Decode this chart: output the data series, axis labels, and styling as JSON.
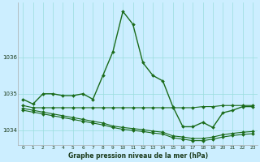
{
  "title": "Graphe pression niveau de la mer (hPa)",
  "bg_color": "#cceeff",
  "grid_color": "#99dddd",
  "line_color": "#1a6b1a",
  "xlim": [
    -0.5,
    23.5
  ],
  "ylim": [
    1033.6,
    1037.5
  ],
  "yticks": [
    1034,
    1035,
    1036
  ],
  "xticks": [
    0,
    1,
    2,
    3,
    4,
    5,
    6,
    7,
    8,
    9,
    10,
    11,
    12,
    13,
    14,
    15,
    16,
    17,
    18,
    19,
    20,
    21,
    22,
    23
  ],
  "series1_x": [
    0,
    1,
    2,
    3,
    4,
    5,
    6,
    7,
    8,
    9,
    10,
    11,
    12,
    13,
    14,
    15,
    16,
    17,
    18,
    19,
    20,
    21,
    22,
    23
  ],
  "series1_y": [
    1034.85,
    1034.72,
    1035.0,
    1035.0,
    1034.95,
    1034.95,
    1035.0,
    1034.85,
    1035.5,
    1036.15,
    1037.25,
    1036.9,
    1035.85,
    1035.5,
    1035.35,
    1034.65,
    1034.1,
    1034.1,
    1034.22,
    1034.08,
    1034.48,
    1034.55,
    1034.65,
    1034.65
  ],
  "series2_x": [
    0,
    1,
    2,
    3,
    4,
    5,
    6,
    7,
    8,
    9,
    10,
    11,
    12,
    13,
    14,
    15,
    16,
    17,
    18,
    19,
    20,
    21,
    22,
    23
  ],
  "series2_y": [
    1034.68,
    1034.62,
    1034.62,
    1034.62,
    1034.62,
    1034.62,
    1034.62,
    1034.62,
    1034.62,
    1034.62,
    1034.62,
    1034.62,
    1034.62,
    1034.62,
    1034.62,
    1034.62,
    1034.62,
    1034.62,
    1034.65,
    1034.65,
    1034.68,
    1034.68,
    1034.68,
    1034.68
  ],
  "series3_x": [
    0,
    1,
    2,
    3,
    4,
    5,
    6,
    7,
    8,
    9,
    10,
    11,
    12,
    13,
    14,
    15,
    16,
    17,
    18,
    19,
    20,
    21,
    22,
    23
  ],
  "series3_y": [
    1034.6,
    1034.55,
    1034.5,
    1034.45,
    1034.4,
    1034.35,
    1034.3,
    1034.25,
    1034.2,
    1034.12,
    1034.08,
    1034.05,
    1034.02,
    1033.98,
    1033.95,
    1033.85,
    1033.82,
    1033.78,
    1033.78,
    1033.82,
    1033.88,
    1033.92,
    1033.95,
    1033.97
  ],
  "series4_x": [
    0,
    1,
    2,
    3,
    4,
    5,
    6,
    7,
    8,
    9,
    10,
    11,
    12,
    13,
    14,
    15,
    16,
    17,
    18,
    19,
    20,
    21,
    22,
    23
  ],
  "series4_y": [
    1034.55,
    1034.5,
    1034.45,
    1034.4,
    1034.35,
    1034.3,
    1034.25,
    1034.2,
    1034.15,
    1034.08,
    1034.03,
    1034.0,
    1033.97,
    1033.93,
    1033.9,
    1033.8,
    1033.76,
    1033.72,
    1033.72,
    1033.76,
    1033.82,
    1033.86,
    1033.89,
    1033.91
  ]
}
